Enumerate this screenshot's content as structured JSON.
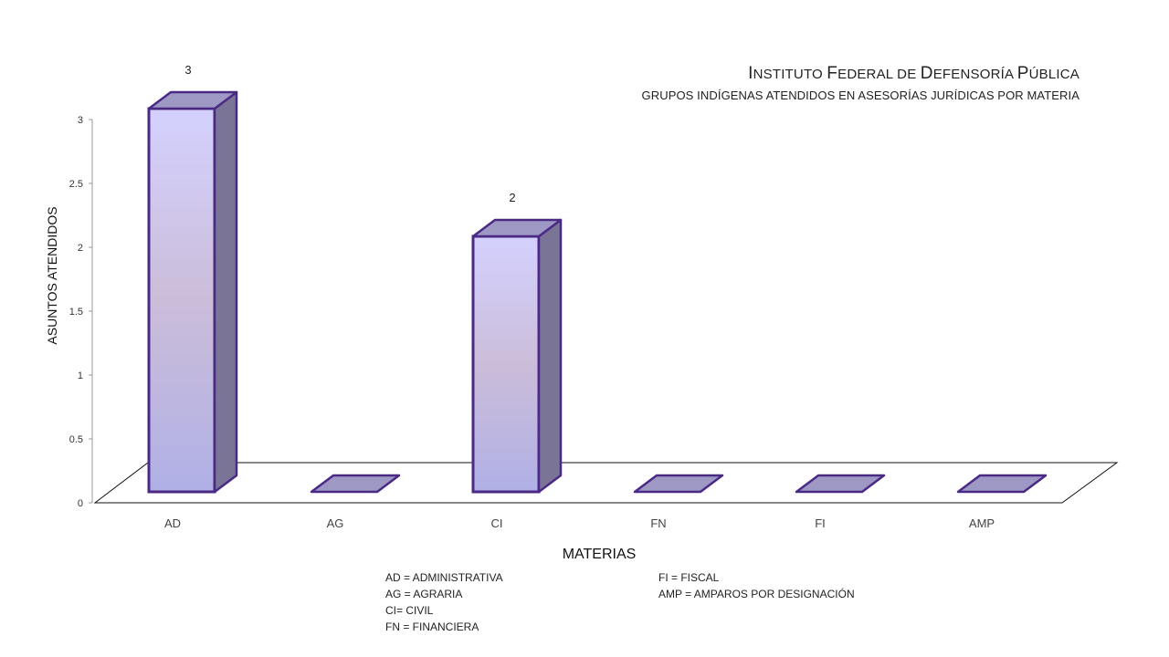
{
  "chart_data": {
    "type": "bar",
    "title": "Instituto Federal de Defensoría Pública",
    "subtitle": "GRUPOS INDÍGENAS ATENDIDOS EN ASESORÍAS JURÍDICAS POR MATERIA",
    "xlabel": "MATERIAS",
    "ylabel": "ASUNTOS ATENDIDOS",
    "categories": [
      "AD",
      "AG",
      "CI",
      "FN",
      "FI",
      "AMP"
    ],
    "values": [
      3,
      0,
      2,
      0,
      0,
      0
    ],
    "data_labels": [
      "3",
      "",
      "2",
      "",
      "",
      ""
    ],
    "ylim": [
      0,
      3
    ],
    "yticks": [
      "0",
      "0.5",
      "1",
      "1.5",
      "2",
      "2.5",
      "3"
    ],
    "grid": false,
    "legend": "none",
    "colors": {
      "bar_top": "#d4d1ff",
      "bar_mid": "#cbbdd9",
      "bar_bottom": "#b0b0e6",
      "bar_side": "#7a7596",
      "bar_cap": "#9d98c4",
      "outline": "#4b2a86"
    }
  },
  "footnotes": {
    "left": [
      "AD = ADMINISTRATIVA",
      "AG = AGRARIA",
      "CI= CIVIL",
      "FN = FINANCIERA"
    ],
    "right": [
      "FI = FISCAL",
      "AMP = AMPAROS POR DESIGNACIÓN"
    ]
  }
}
